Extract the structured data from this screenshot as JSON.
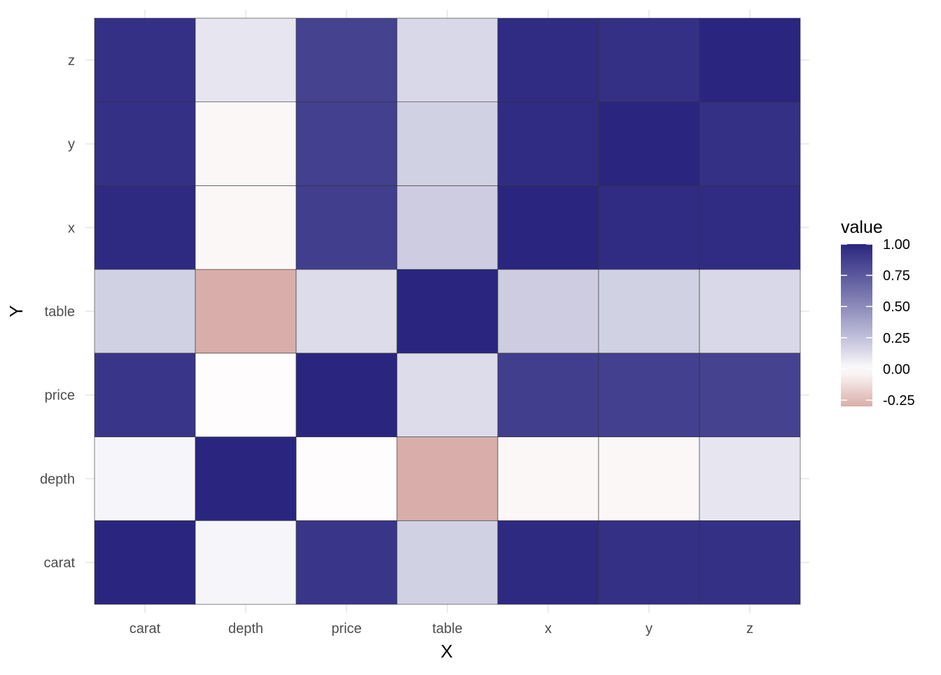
{
  "chart_data": {
    "type": "heatmap",
    "title": "",
    "xlabel": "X",
    "ylabel": "Y",
    "x_categories": [
      "carat",
      "depth",
      "price",
      "table",
      "x",
      "y",
      "z"
    ],
    "y_categories": [
      "carat",
      "depth",
      "price",
      "table",
      "x",
      "y",
      "z"
    ],
    "values": [
      [
        1.0,
        0.03,
        0.92,
        0.18,
        0.98,
        0.95,
        0.95
      ],
      [
        0.03,
        1.0,
        -0.01,
        -0.3,
        -0.03,
        -0.03,
        0.09
      ],
      [
        0.92,
        -0.01,
        1.0,
        0.13,
        0.88,
        0.87,
        0.86
      ],
      [
        0.18,
        -0.3,
        0.13,
        1.0,
        0.2,
        0.18,
        0.15
      ],
      [
        0.98,
        -0.03,
        0.88,
        0.2,
        1.0,
        0.97,
        0.97
      ],
      [
        0.95,
        -0.03,
        0.87,
        0.18,
        0.97,
        1.0,
        0.95
      ],
      [
        0.95,
        0.09,
        0.86,
        0.15,
        0.97,
        0.95,
        1.0
      ]
    ],
    "legend": {
      "title": "value",
      "placement": "right",
      "ticks": [
        1.0,
        0.75,
        0.5,
        0.25,
        0.0,
        -0.25
      ],
      "tick_labels": [
        "1.00",
        "0.75",
        "0.50",
        "0.25",
        "0.00",
        "-0.25"
      ],
      "range": [
        -0.3,
        1.0
      ]
    },
    "colors": {
      "high": "#2a2680",
      "mid": "#ffffff",
      "low": "#d9aeaa"
    },
    "grid": true
  }
}
